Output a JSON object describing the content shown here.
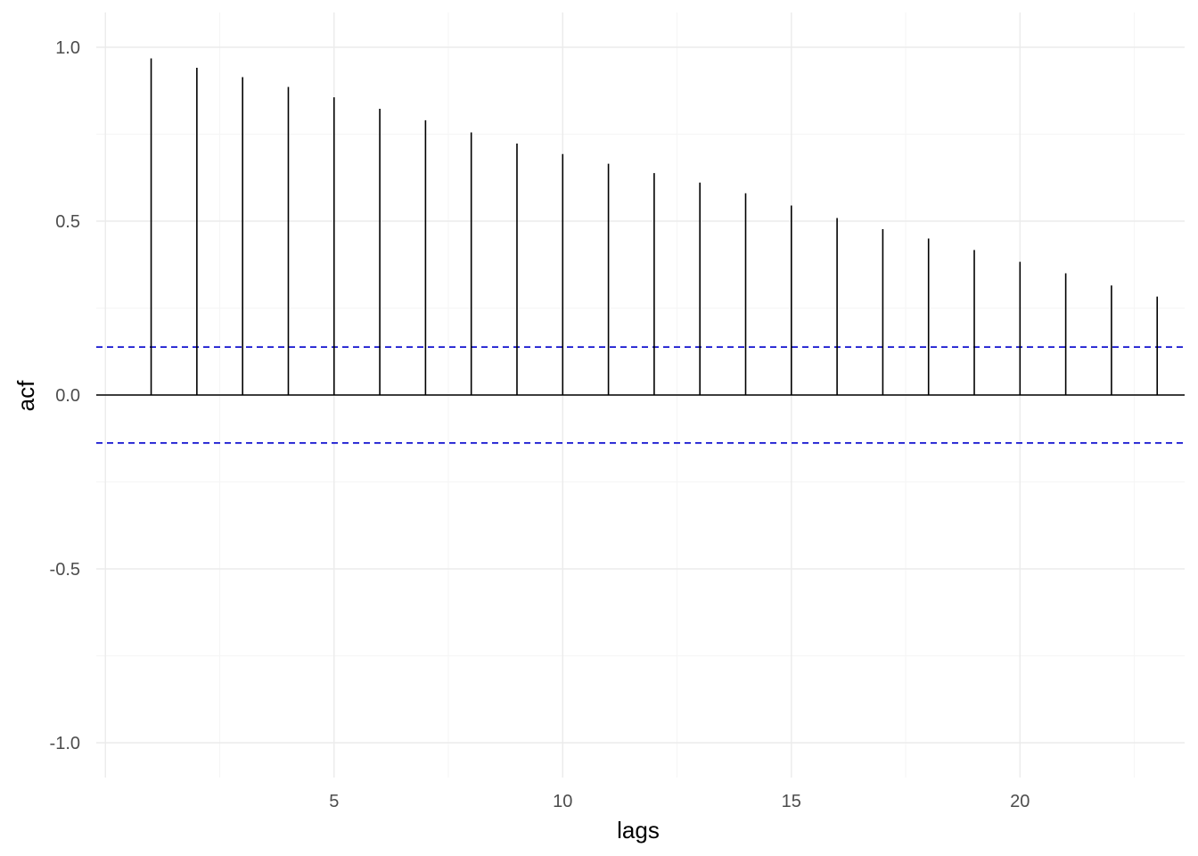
{
  "chart_data": {
    "type": "bar",
    "xlabel": "lags",
    "ylabel": "acf",
    "xlim": [
      -0.2,
      23.6
    ],
    "ylim": [
      -1.1,
      1.1
    ],
    "x_ticks": [
      5,
      10,
      15,
      20
    ],
    "x_tick_labels": [
      "5",
      "10",
      "15",
      "20"
    ],
    "y_ticks": [
      -1.0,
      -0.5,
      0.0,
      0.5,
      1.0
    ],
    "y_tick_labels": [
      "-1.0",
      "-0.5",
      "0.0",
      "0.5",
      "1.0"
    ],
    "grid": true,
    "x": [
      1,
      2,
      3,
      4,
      5,
      6,
      7,
      8,
      9,
      10,
      11,
      12,
      13,
      14,
      15,
      16,
      17,
      18,
      19,
      20,
      21,
      22,
      23
    ],
    "values": [
      0.968,
      0.941,
      0.914,
      0.886,
      0.856,
      0.823,
      0.79,
      0.755,
      0.723,
      0.693,
      0.665,
      0.638,
      0.611,
      0.58,
      0.545,
      0.509,
      0.477,
      0.45,
      0.417,
      0.383,
      0.35,
      0.315,
      0.283
    ],
    "confidence_bounds": [
      0.138,
      -0.138
    ],
    "colors": {
      "bars": "#000000",
      "zero_line": "#000000",
      "bounds": "#0000cc",
      "grid_major": "#ebebeb",
      "grid_minor": "#f5f5f5"
    }
  }
}
